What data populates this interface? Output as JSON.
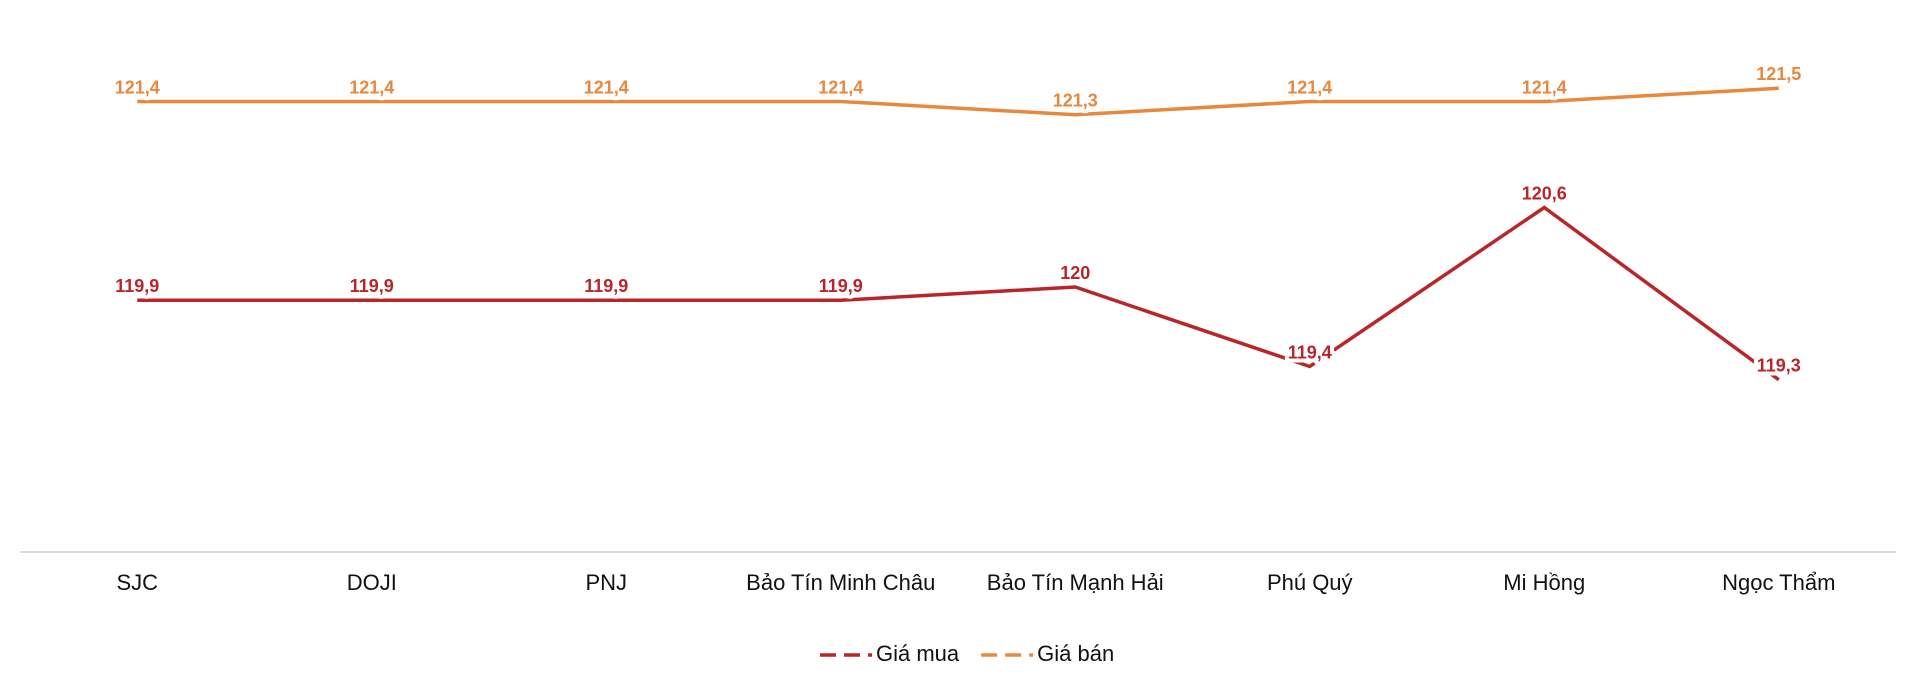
{
  "chart_data": {
    "type": "line",
    "categories": [
      "SJC",
      "DOJI",
      "PNJ",
      "Bảo Tín Minh Châu",
      "Bảo Tín Mạnh Hải",
      "Phú Quý",
      "Mi Hồng",
      "Ngọc Thẩm"
    ],
    "series": [
      {
        "name": "Giá mua",
        "color": "#b8262a",
        "values": [
          119.9,
          119.9,
          119.9,
          119.9,
          120,
          119.4,
          120.6,
          119.3
        ],
        "value_labels": [
          "119,9",
          "119,9",
          "119,9",
          "119,9",
          "120",
          "119,4",
          "120,6",
          "119,3"
        ]
      },
      {
        "name": "Giá bán",
        "color": "#e8873e",
        "values": [
          121.4,
          121.4,
          121.4,
          121.4,
          121.3,
          121.4,
          121.4,
          121.5
        ],
        "value_labels": [
          "121,4",
          "121,4",
          "121,4",
          "121,4",
          "121,3",
          "121,4",
          "121,4",
          "121,5"
        ]
      }
    ],
    "ylim": [
      118,
      122
    ],
    "grid": false,
    "legend": "bottom"
  }
}
